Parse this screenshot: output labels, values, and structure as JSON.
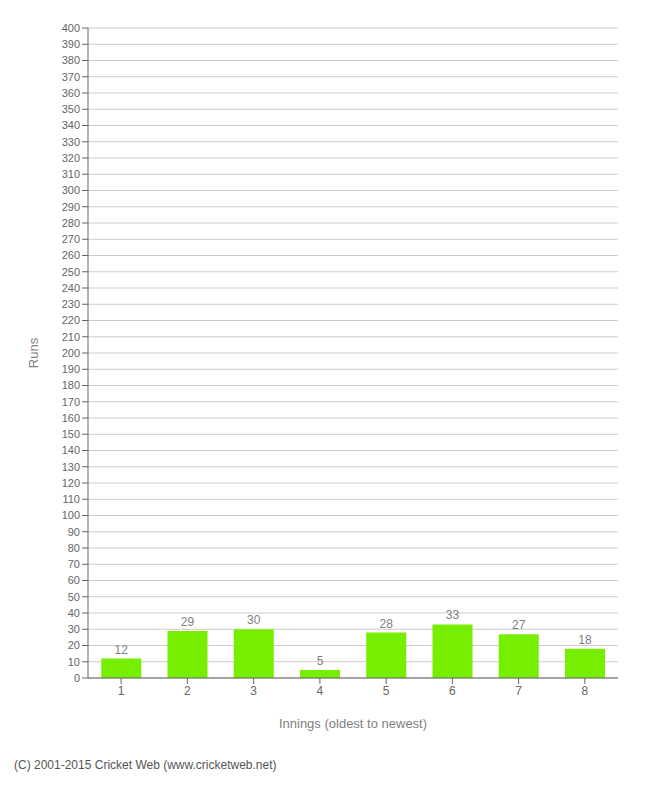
{
  "chart_data": {
    "type": "bar",
    "categories": [
      "1",
      "2",
      "3",
      "4",
      "5",
      "6",
      "7",
      "8"
    ],
    "values": [
      12,
      29,
      30,
      5,
      28,
      33,
      27,
      18
    ],
    "color": "#77ee00",
    "xlabel": "Innings (oldest to newest)",
    "ylabel": "Runs",
    "ylim": [
      0,
      400
    ],
    "yticks": [
      0,
      10,
      20,
      30,
      40,
      50,
      60,
      70,
      80,
      90,
      100,
      110,
      120,
      130,
      140,
      150,
      160,
      170,
      180,
      190,
      200,
      210,
      220,
      230,
      240,
      250,
      260,
      270,
      280,
      290,
      300,
      310,
      320,
      330,
      340,
      350,
      360,
      370,
      380,
      390,
      400
    ],
    "grid": true,
    "data_labels": true,
    "annotations": [
      "(C) 2001-2015 Cricket Web (www.cricketweb.net)"
    ]
  }
}
